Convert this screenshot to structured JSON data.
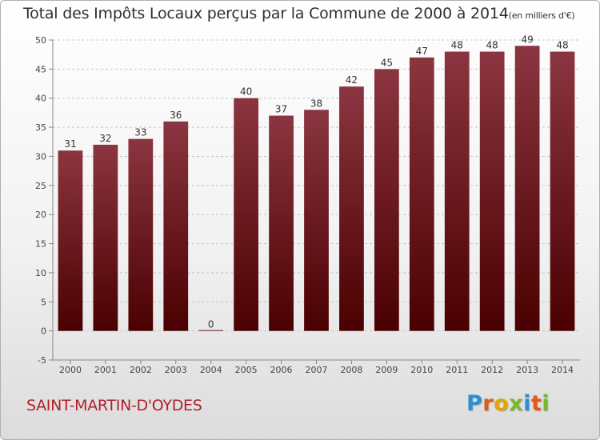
{
  "header": {
    "title": "Total des Impôts Locaux perçus par la Commune de 2000 à 2014",
    "unit": "(en milliers d'€)"
  },
  "commune": "SAINT-MARTIN-D'OYDES",
  "brand": {
    "letters": [
      "P",
      "r",
      "o",
      "x",
      "i",
      "t",
      "i"
    ],
    "letter_colors": [
      "#2a8fd6",
      "#e05a1a",
      "#e6a400",
      "#7ab828",
      "#2a8fd6",
      "#e05a1a",
      "#7ab828"
    ]
  },
  "colors": {
    "bar_top": "#8b3540",
    "bar_bottom": "#4a0000",
    "title": "#2f2f2f",
    "commune": "#b0202a"
  },
  "chart_data": {
    "type": "bar",
    "title": "Total des Impôts Locaux perçus par la Commune de 2000 à 2014",
    "xlabel": "",
    "ylabel": "",
    "categories": [
      "2000",
      "2001",
      "2002",
      "2003",
      "2004",
      "2005",
      "2006",
      "2007",
      "2008",
      "2009",
      "2010",
      "2011",
      "2012",
      "2013",
      "2014"
    ],
    "values": [
      31,
      32,
      33,
      36,
      0,
      40,
      37,
      38,
      42,
      45,
      47,
      48,
      48,
      49,
      48
    ],
    "data_labels": [
      "31",
      "32",
      "33",
      "36",
      "0",
      "40",
      "37",
      "38",
      "42",
      "45",
      "47",
      "48",
      "48",
      "49",
      "48"
    ],
    "ylim": [
      -5,
      50
    ],
    "yticks": [
      -5,
      0,
      5,
      10,
      15,
      20,
      25,
      30,
      35,
      40,
      45,
      50
    ],
    "grid": true,
    "legend": "none"
  }
}
